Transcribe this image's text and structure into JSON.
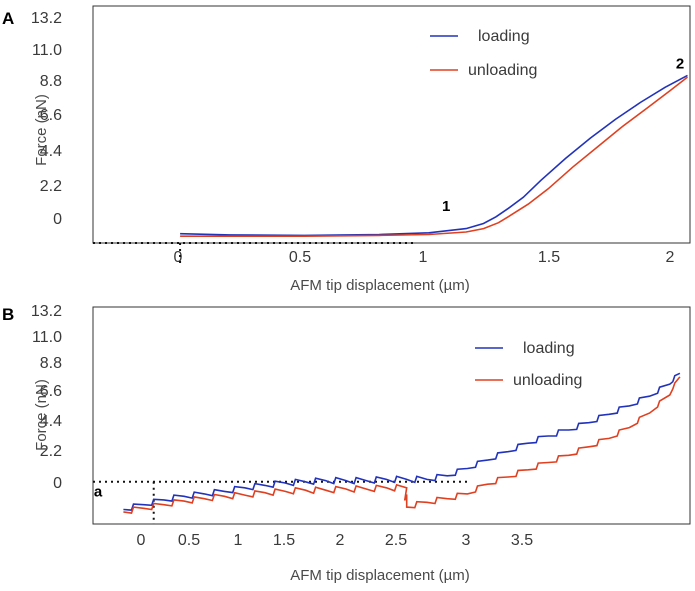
{
  "chart_data": [
    {
      "panel": "A",
      "type": "line",
      "xlabel": "AFM tip displacement (µm)",
      "ylabel": "Force (nN)",
      "xticks": [
        "0",
        "0.5",
        "1",
        "1.5",
        "2"
      ],
      "yticks": [
        "13.2",
        "11.0",
        "8.8",
        "6.6",
        "4.4",
        "2.2",
        "0"
      ],
      "xlim": [
        -0.35,
        2.05
      ],
      "ylim": [
        -0.4,
        13.6
      ],
      "legend": "top-right",
      "annotations": [
        {
          "text": "1",
          "x": 1.07,
          "y": 1.5
        },
        {
          "text": "2",
          "x": 2.01,
          "y": 9.9
        }
      ],
      "series": [
        {
          "name": "loading",
          "color": "#2233bb",
          "x": [
            0.0,
            0.2,
            0.5,
            0.8,
            1.0,
            1.15,
            1.22,
            1.27,
            1.32,
            1.38,
            1.45,
            1.55,
            1.65,
            1.75,
            1.85,
            1.95,
            2.04
          ],
          "y": [
            0.15,
            0.08,
            0.05,
            0.1,
            0.2,
            0.45,
            0.75,
            1.15,
            1.65,
            2.3,
            3.3,
            4.6,
            5.8,
            6.9,
            7.9,
            8.8,
            9.5
          ]
        },
        {
          "name": "unloading",
          "color": "#e04020",
          "x": [
            0.0,
            0.2,
            0.5,
            0.8,
            1.0,
            1.15,
            1.22,
            1.28,
            1.33,
            1.4,
            1.48,
            1.58,
            1.68,
            1.78,
            1.88,
            1.97,
            2.04
          ],
          "y": [
            0.0,
            0.0,
            0.0,
            0.05,
            0.1,
            0.25,
            0.45,
            0.8,
            1.25,
            1.9,
            2.8,
            4.1,
            5.3,
            6.5,
            7.6,
            8.6,
            9.4
          ]
        }
      ],
      "reference_line": {
        "y": -0.4,
        "x_from": -0.35,
        "x_to": 0.95,
        "vertical_x": 0,
        "vertical_to": -1.8
      }
    },
    {
      "panel": "B",
      "type": "line",
      "xlabel": "AFM tip displacement (µm)",
      "ylabel": "Force (nN)",
      "xticks": [
        "0",
        "0.5",
        "1",
        "1.5",
        "2",
        "2.5",
        "3",
        "3.5"
      ],
      "yticks": [
        "13.2",
        "11.0",
        "8.8",
        "6.6",
        "4.4",
        "2.2",
        "0"
      ],
      "xlim": [
        -0.6,
        5.3
      ],
      "ylim": [
        -3.8,
        14.2
      ],
      "legend": "top-right",
      "annotations": [
        {
          "text": "a",
          "x": -0.55,
          "y": -1.5
        }
      ],
      "series": [
        {
          "name": "loading",
          "color": "#2233bb",
          "x": [
            -0.3,
            -0.1,
            0.1,
            0.3,
            0.5,
            0.7,
            0.9,
            1.1,
            1.3,
            1.5,
            1.7,
            1.9,
            2.1,
            2.3,
            2.5,
            2.7,
            2.9,
            3.1,
            3.3,
            3.5,
            3.7,
            3.9,
            4.1,
            4.3,
            4.5,
            4.7,
            4.9,
            5.1,
            5.2
          ],
          "y": [
            -2.6,
            -2.2,
            -1.8,
            -1.5,
            -1.3,
            -1.1,
            -0.8,
            -0.6,
            -0.4,
            -0.3,
            -0.2,
            -0.2,
            -0.2,
            -0.1,
            -0.1,
            -0.1,
            0.2,
            0.8,
            1.5,
            2.2,
            2.9,
            3.5,
            4.0,
            4.6,
            5.3,
            6.0,
            6.8,
            7.8,
            8.7
          ]
        },
        {
          "name": "unloading",
          "color": "#e04020",
          "x": [
            -0.3,
            -0.1,
            0.1,
            0.3,
            0.5,
            0.7,
            0.9,
            1.1,
            1.3,
            1.5,
            1.7,
            1.9,
            2.1,
            2.3,
            2.5,
            2.5,
            2.7,
            2.9,
            3.1,
            3.3,
            3.5,
            3.7,
            3.9,
            4.1,
            4.3,
            4.5,
            4.7,
            4.9,
            5.1,
            5.2
          ],
          "y": [
            -2.8,
            -2.5,
            -2.2,
            -1.9,
            -1.7,
            -1.5,
            -1.4,
            -1.2,
            -1.1,
            -1.0,
            -1.0,
            -0.9,
            -0.9,
            -0.8,
            -0.8,
            -2.4,
            -2.0,
            -1.7,
            -1.3,
            -0.5,
            0.1,
            0.7,
            1.3,
            1.9,
            2.6,
            3.3,
            4.2,
            5.4,
            6.9,
            8.4
          ]
        }
      ],
      "reference_line": {
        "y": -0.3,
        "x_from": -0.6,
        "x_to": 3.1,
        "vertical_x": 0,
        "vertical_to": -3.8
      }
    }
  ]
}
